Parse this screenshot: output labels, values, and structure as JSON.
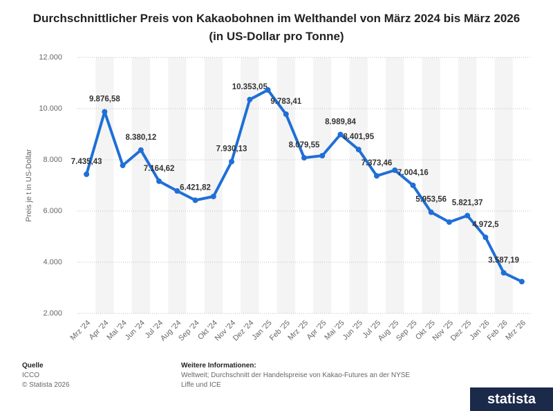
{
  "chart_data": {
    "type": "line",
    "title": "Durchschnittlicher Preis von Kakaobohnen im Welthandel von März 2024 bis März 2026 (in US-Dollar pro Tonne)",
    "y_label": "Preis je t in US-Dollar",
    "categories": [
      "Mrz '24",
      "Apr '24",
      "Mai '24",
      "Jun '24",
      "Jul '24",
      "Aug '24",
      "Sep '24",
      "Okt '24",
      "Nov '24",
      "Dez '24",
      "Jan '25",
      "Feb '25",
      "Mrz '25",
      "Apr '25",
      "Mai '25",
      "Jun '25",
      "Jul '25",
      "Aug '25",
      "Sep '25",
      "Okt '25",
      "Nov '25",
      "Dez '25",
      "Jan '26",
      "Feb '26",
      "Mrz '26"
    ],
    "values": [
      7435.43,
      9876.58,
      7784,
      8380.12,
      7164.62,
      6784,
      6421.82,
      6568,
      7930.13,
      10353.05,
      10730,
      9783.41,
      8079.55,
      8162,
      8989.84,
      8401.95,
      7373.46,
      7595,
      7004.16,
      5953.56,
      5568,
      5821.37,
      4972.5,
      3587.19,
      3243
    ],
    "value_labels": [
      "7.435,43",
      "9.876,58",
      null,
      "8.380,12",
      "7.164,62",
      null,
      "6.421,82",
      null,
      "7.930,13",
      "10.353,05",
      null,
      "9.783,41",
      "8.079,55",
      null,
      "8.989,84",
      "8.401,95",
      "7.373,46",
      null,
      "7.004,16",
      "5.953,56",
      null,
      "5.821,37",
      "4.972,5",
      "3.587,19",
      null
    ],
    "color": "#1f6fd6",
    "ylim": [
      2000,
      12000
    ],
    "yticks": [
      {
        "value": 2000,
        "label": "2.000"
      },
      {
        "value": 4000,
        "label": "4.000"
      },
      {
        "value": 6000,
        "label": "6.000"
      },
      {
        "value": 8000,
        "label": "8.000"
      },
      {
        "value": 10000,
        "label": "10.000"
      },
      {
        "value": 12000,
        "label": "12.000"
      }
    ],
    "grid": true
  },
  "footer": {
    "source_title": "Quelle",
    "source": "ICCO",
    "copyright": "© Statista 2026",
    "info_title": "Weitere Informationen:",
    "info": "Weltweit; Durchschnitt der Handelspreise von Kakao-Futures an der NYSE Liffe und ICE",
    "logo": "statista"
  }
}
